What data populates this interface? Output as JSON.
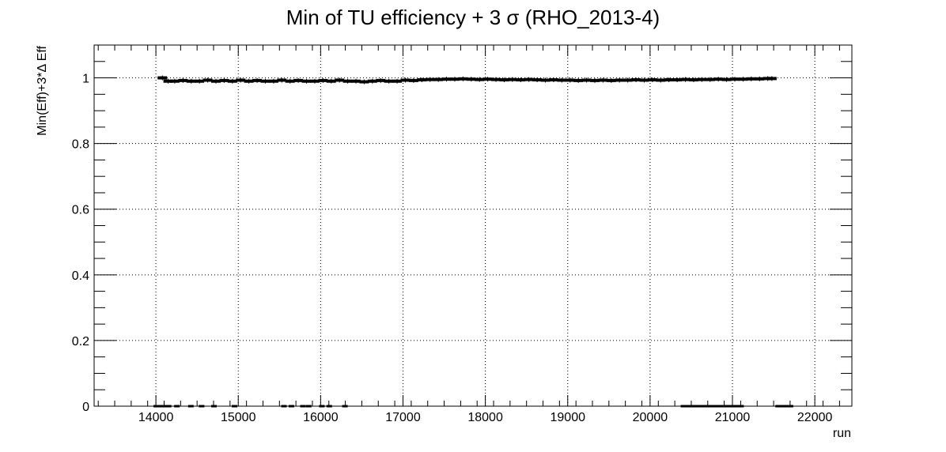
{
  "chart_data": {
    "type": "scatter",
    "title": "Min of TU efficiency + 3 σ (RHO_2013-4)",
    "xlabel": "run",
    "ylabel": "Min(Eff)+3*Δ Eff",
    "xlim": [
      13250,
      22450
    ],
    "ylim": [
      0,
      1.1
    ],
    "xticks": [
      "14000",
      "15000",
      "16000",
      "17000",
      "18000",
      "19000",
      "20000",
      "21000",
      "22000"
    ],
    "xtick_values": [
      14000,
      15000,
      16000,
      17000,
      18000,
      19000,
      20000,
      21000,
      22000
    ],
    "yticks": [
      "0",
      "0.2",
      "0.4",
      "0.6",
      "0.8",
      "1"
    ],
    "ytick_values": [
      0,
      0.2,
      0.4,
      0.6,
      0.8,
      1.0
    ],
    "grid": true,
    "legend": "none",
    "marker_color": "#000000",
    "series": [
      {
        "x": [
          14050,
          14120,
          14200,
          14300,
          14400,
          14500,
          14600,
          14700,
          14800,
          14900,
          15000,
          15100,
          15200,
          15300,
          15400,
          15500,
          15600,
          15700,
          15800,
          15900,
          16000,
          16100,
          16200,
          16300,
          16400,
          16500,
          16600,
          16700,
          16800,
          16900,
          17000,
          17100,
          17200,
          17300,
          17400,
          17500,
          17600,
          17700,
          17800,
          17900,
          18000,
          18100,
          18200,
          18300,
          18400,
          18500,
          18600,
          18700,
          18800,
          18900,
          19000,
          19100,
          19200,
          19300,
          19400,
          19500,
          19600,
          19700,
          19800,
          19900,
          20000,
          20100,
          20200,
          20300,
          20400,
          20500,
          20600,
          20700,
          20800,
          20900,
          21000,
          21100,
          21200,
          21300,
          21400,
          21450
        ],
        "y": [
          1.0,
          0.99,
          0.99,
          0.992,
          0.99,
          0.99,
          0.993,
          0.99,
          0.992,
          0.99,
          0.993,
          0.99,
          0.992,
          0.99,
          0.99,
          0.993,
          0.99,
          0.992,
          0.99,
          0.99,
          0.992,
          0.99,
          0.993,
          0.99,
          0.99,
          0.988,
          0.99,
          0.992,
          0.99,
          0.99,
          0.993,
          0.992,
          0.994,
          0.995,
          0.995,
          0.996,
          0.996,
          0.997,
          0.996,
          0.995,
          0.996,
          0.995,
          0.994,
          0.995,
          0.994,
          0.995,
          0.994,
          0.993,
          0.994,
          0.993,
          0.993,
          0.992,
          0.993,
          0.992,
          0.993,
          0.992,
          0.993,
          0.993,
          0.994,
          0.993,
          0.994,
          0.993,
          0.994,
          0.994,
          0.995,
          0.994,
          0.995,
          0.995,
          0.996,
          0.995,
          0.996,
          0.996,
          0.997,
          0.997,
          0.998,
          0.998
        ]
      },
      {
        "x": [
          14000,
          14050,
          14100,
          14150,
          14250,
          14420,
          14550,
          14700,
          14950,
          15550,
          15640,
          15780,
          15850,
          16010,
          16100,
          16290,
          20400,
          20450,
          20500,
          20550,
          20600,
          20650,
          20700,
          20750,
          20800,
          20850,
          20900,
          20950,
          21000,
          21050,
          21100,
          21550,
          21600,
          21650,
          21700
        ],
        "y": [
          0,
          0,
          0,
          0,
          0,
          0,
          0,
          0,
          0,
          0,
          0,
          0,
          0,
          0,
          0,
          0,
          0,
          0,
          0,
          0,
          0,
          0,
          0,
          0,
          0,
          0,
          0,
          0,
          0,
          0,
          0,
          0,
          0,
          0,
          0
        ]
      }
    ]
  }
}
